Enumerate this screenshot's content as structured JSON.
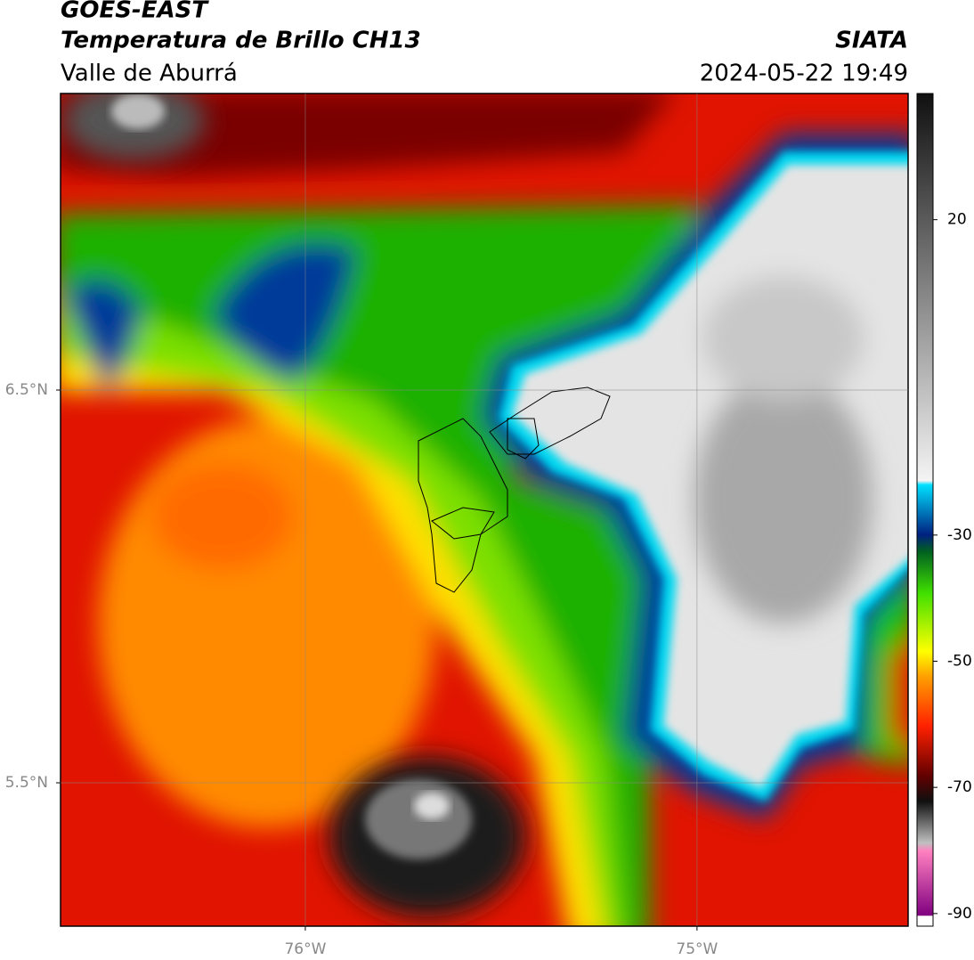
{
  "header": {
    "title": "GOES-EAST",
    "subtitle": "Temperatura de Brillo CH13",
    "region": "Valle de Aburrá",
    "source": "SIATA",
    "datetime": "2024-05-22 19:49"
  },
  "map": {
    "xlim": [
      -76.625,
      -74.461
    ],
    "ylim": [
      5.135,
      7.255
    ],
    "xticks": [
      {
        "value": -76,
        "label": "76°W"
      },
      {
        "value": -75,
        "label": "75°W"
      }
    ],
    "yticks": [
      {
        "value": 6.5,
        "label": "6.5°N"
      },
      {
        "value": 5.5,
        "label": "5.5°N"
      }
    ],
    "grid": true
  },
  "colorbar": {
    "clim": [
      -92,
      40
    ],
    "ticks": [
      20,
      -30,
      -50,
      -70,
      -90
    ]
  }
}
